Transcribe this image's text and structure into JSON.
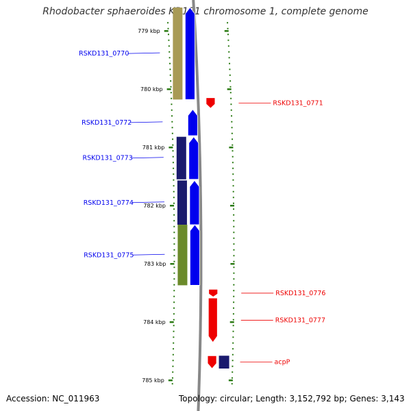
{
  "title": "Rhodobacter sphaeroides KD131 chromosome 1, complete genome",
  "footer": {
    "accession": "Accession: NC_011963",
    "summary": "Topology: circular; Length: 3,152,792 bp; Genes: 3,143"
  },
  "ruler": {
    "ticks": [
      {
        "label": "779 kbp",
        "kbp": 779
      },
      {
        "label": "780 kbp",
        "kbp": 780
      },
      {
        "label": "781 kbp",
        "kbp": 781
      },
      {
        "label": "782 kbp",
        "kbp": 782
      },
      {
        "label": "783 kbp",
        "kbp": 783
      },
      {
        "label": "784 kbp",
        "kbp": 784
      },
      {
        "label": "785 kbp",
        "kbp": 785
      }
    ]
  },
  "colors": {
    "reverse_strand": "#0000ee",
    "forward_strand": "#ee0000",
    "tick": "#2a7a12",
    "backbone": "#888888"
  },
  "genes": [
    {
      "name": "RSKD131_0770",
      "strand": "reverse",
      "start_kbp": 778.6,
      "end_kbp": 780.18,
      "cog_color": "#a89a55"
    },
    {
      "name": "RSKD131_0771",
      "strand": "forward",
      "start_kbp": 780.15,
      "end_kbp": 780.33,
      "cog_color": null
    },
    {
      "name": "RSKD131_0772",
      "strand": "reverse",
      "start_kbp": 780.35,
      "end_kbp": 780.8,
      "cog_color": null
    },
    {
      "name": "RSKD131_0773",
      "strand": "reverse",
      "start_kbp": 780.82,
      "end_kbp": 781.55,
      "cog_color": "#1a1a6e"
    },
    {
      "name": "RSKD131_0774",
      "strand": "reverse",
      "start_kbp": 781.57,
      "end_kbp": 782.33,
      "cog_color": "#1a1a6e"
    },
    {
      "name": "RSKD131_0775",
      "strand": "reverse",
      "start_kbp": 782.33,
      "end_kbp": 783.37,
      "cog_color": "#6b8a2a"
    },
    {
      "name": "RSKD131_0776",
      "strand": "forward",
      "start_kbp": 783.44,
      "end_kbp": 783.57,
      "cog_color": null
    },
    {
      "name": "RSKD131_0777",
      "strand": "forward",
      "start_kbp": 783.59,
      "end_kbp": 784.35,
      "cog_color": null
    },
    {
      "name": "acpP",
      "strand": "forward",
      "start_kbp": 784.58,
      "end_kbp": 784.8,
      "cog_color": "#1a1a6e"
    }
  ]
}
